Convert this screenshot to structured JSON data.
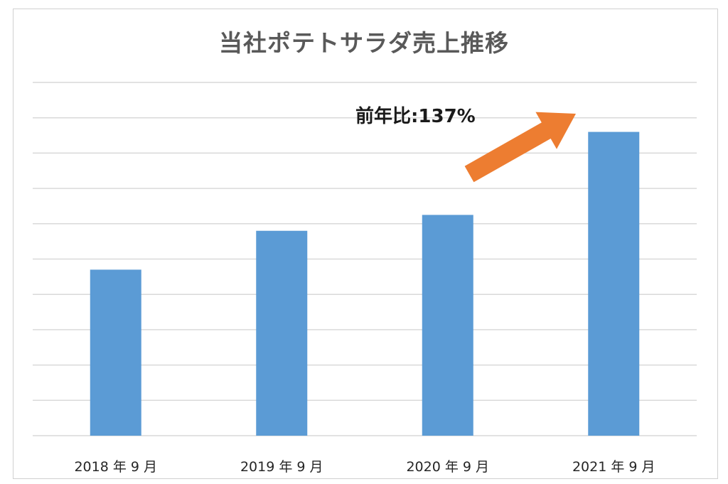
{
  "chart_data": {
    "type": "bar",
    "title": "当社ポテトサラダ売上推移",
    "categories": [
      "2018 年 9 月",
      "2019 年 9 月",
      "2020 年 9 月",
      "2021 年 9 月"
    ],
    "values": [
      4.7,
      5.8,
      6.25,
      8.6
    ],
    "ylim": [
      0,
      10
    ],
    "grid": true,
    "bar_color": "#5b9bd5",
    "annotation": {
      "text": "前年比:137%",
      "arrow_color": "#ed7d31",
      "points_to": "2021 年 9 月"
    }
  }
}
